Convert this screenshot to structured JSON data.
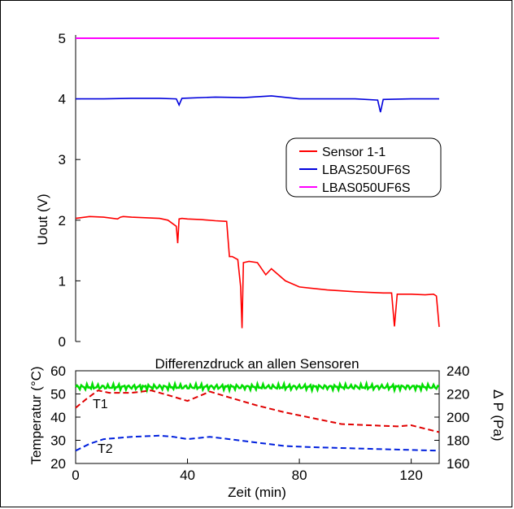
{
  "chart_data": [
    {
      "type": "line",
      "panel": "top",
      "ylabel": "Uout (V)",
      "xlim": [
        0,
        130
      ],
      "ylim": [
        0,
        5
      ],
      "yticks": [
        0,
        1,
        2,
        3,
        4,
        5
      ],
      "ytick_labels": [
        "0",
        "1",
        "2",
        "3",
        "4",
        "5"
      ],
      "legend_position": "right-center",
      "series": [
        {
          "name": "Sensor 1-1",
          "color": "#ff0000",
          "x": [
            0,
            5,
            10,
            15,
            16,
            17,
            20,
            25,
            30,
            33,
            36,
            36.5,
            37,
            38,
            40,
            45,
            50,
            54,
            55,
            56,
            58,
            59,
            59.5,
            60,
            62,
            65,
            68,
            70,
            75,
            80,
            90,
            100,
            110,
            113,
            114,
            115,
            120,
            125,
            128,
            129,
            130
          ],
          "y": [
            2.03,
            2.06,
            2.05,
            2.02,
            2.05,
            2.06,
            2.05,
            2.04,
            2.03,
            2.0,
            1.9,
            1.62,
            2.02,
            2.03,
            2.02,
            2.01,
            1.99,
            1.98,
            1.4,
            1.4,
            1.35,
            0.9,
            0.22,
            1.3,
            1.32,
            1.3,
            1.1,
            1.2,
            1.0,
            0.9,
            0.85,
            0.82,
            0.8,
            0.8,
            0.25,
            0.78,
            0.78,
            0.77,
            0.78,
            0.75,
            0.24
          ]
        },
        {
          "name": "LBAS250UF6S",
          "color": "#0000dd",
          "x": [
            0,
            10,
            20,
            30,
            36,
            37,
            38,
            50,
            60,
            70,
            80,
            90,
            100,
            108,
            109,
            110,
            120,
            130
          ],
          "y": [
            4.0,
            4.0,
            4.01,
            4.01,
            4.0,
            3.9,
            4.01,
            4.03,
            4.02,
            4.05,
            4.0,
            4.0,
            4.0,
            3.98,
            3.78,
            3.99,
            4.0,
            4.0
          ]
        },
        {
          "name": "LBAS050UF6S",
          "color": "#ff00ff",
          "x": [
            0,
            130
          ],
          "y": [
            5.0,
            5.0
          ]
        }
      ]
    },
    {
      "type": "line",
      "panel": "bottom",
      "title": "Differenzdruck an allen Sensoren",
      "xlabel": "Zeit (min)",
      "ylabel": "Temperatur (°C)",
      "ylabel_right": "∆ P (Pa)",
      "xlim": [
        0,
        130
      ],
      "xticks": [
        0,
        40,
        80,
        120
      ],
      "xtick_labels": [
        "0",
        "40",
        "80",
        "120"
      ],
      "ylim": [
        20,
        60
      ],
      "yticks": [
        20,
        30,
        40,
        50,
        60
      ],
      "ytick_labels": [
        "20",
        "30",
        "40",
        "50",
        "60"
      ],
      "ylim_right": [
        160,
        240
      ],
      "yticks_right": [
        160,
        180,
        200,
        220,
        240
      ],
      "ytick_labels_right": [
        "160",
        "180",
        "200",
        "220",
        "240"
      ],
      "annotations": [
        "T1",
        "T2"
      ],
      "series": [
        {
          "name": "T1",
          "color": "#e00000",
          "style": "dashed",
          "x": [
            0,
            4,
            8,
            12,
            20,
            27,
            33,
            40,
            44,
            48,
            55,
            65,
            75,
            85,
            95,
            105,
            115,
            120,
            125,
            130
          ],
          "y": [
            44,
            48,
            51.5,
            50.5,
            50.5,
            51.5,
            49.5,
            47,
            49,
            51,
            48.5,
            45,
            42,
            39.5,
            37,
            36.5,
            36,
            36.5,
            35,
            33.5
          ]
        },
        {
          "name": "T2",
          "color": "#0020dd",
          "style": "dashed",
          "x": [
            0,
            5,
            10,
            20,
            30,
            35,
            40,
            48,
            55,
            65,
            75,
            85,
            100,
            115,
            130
          ],
          "y": [
            25.5,
            28.5,
            30.5,
            31.5,
            32,
            31.5,
            30.5,
            31.5,
            30.5,
            29,
            27.5,
            27,
            26.5,
            26,
            25.5
          ]
        },
        {
          "name": "Differenzdruck",
          "color": "#00dd00",
          "axis": "right",
          "x": [
            0,
            20,
            40,
            60,
            80,
            100,
            120,
            130
          ],
          "y": [
            226,
            226,
            226,
            226,
            226,
            226,
            226,
            226
          ]
        }
      ]
    }
  ]
}
